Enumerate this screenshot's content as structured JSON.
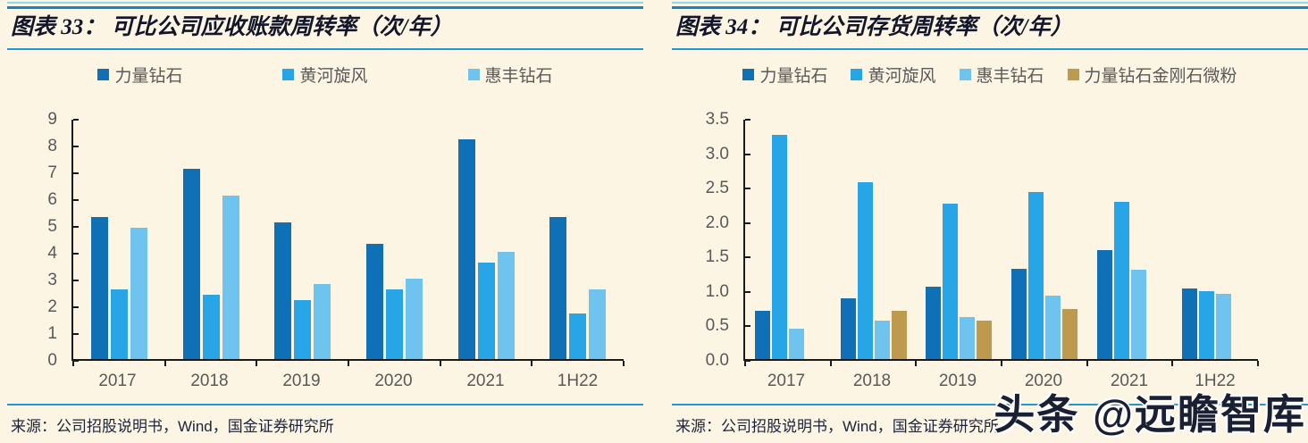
{
  "page": {
    "background": "#FCF5E4",
    "accent_colors": {
      "rule_light": "#8ED9F2",
      "rule_strong": "#1583C5",
      "rule_mid": "#2196D3"
    },
    "watermark_text": "头条 @远瞻智库"
  },
  "chart_data": [
    {
      "type": "bar",
      "title": "图表 33：  可比公司应收账款周转率（次/年）",
      "source": "来源：公司招股说明书，Wind，国金证券研究所",
      "categories": [
        "2017",
        "2018",
        "2019",
        "2020",
        "2021",
        "1H22"
      ],
      "series": [
        {
          "name": "力量钻石",
          "color": "#0F70B6",
          "values": [
            5.3,
            7.1,
            5.1,
            4.3,
            8.2,
            5.3
          ]
        },
        {
          "name": "黄河旋风",
          "color": "#27A5E7",
          "values": [
            2.6,
            2.4,
            2.2,
            2.6,
            3.6,
            1.7
          ]
        },
        {
          "name": "惠丰钻石",
          "color": "#6EC3EF",
          "values": [
            4.9,
            6.1,
            2.8,
            3.0,
            4.0,
            2.6
          ]
        }
      ],
      "ylim": [
        0,
        9
      ],
      "yticks": [
        0,
        1,
        2,
        3,
        4,
        5,
        6,
        7,
        8,
        9
      ],
      "ytick_labels": [
        "0",
        "1",
        "2",
        "3",
        "4",
        "5",
        "6",
        "7",
        "8",
        "9"
      ],
      "grid": false,
      "legend_position": "top"
    },
    {
      "type": "bar",
      "title": "图表 34：  可比公司存货周转率（次/年）",
      "source": "来源：公司招股说明书，Wind，国金证券研究所",
      "categories": [
        "2017",
        "2018",
        "2019",
        "2020",
        "2021",
        "1H22"
      ],
      "series": [
        {
          "name": "力量钻石",
          "color": "#0F70B6",
          "values": [
            0.7,
            0.88,
            1.05,
            1.31,
            1.58,
            1.02
          ]
        },
        {
          "name": "黄河旋风",
          "color": "#27A5E7",
          "values": [
            3.25,
            2.57,
            2.26,
            2.42,
            2.28,
            0.98
          ]
        },
        {
          "name": "惠丰钻石",
          "color": "#6EC3EF",
          "values": [
            0.44,
            0.56,
            0.61,
            0.92,
            1.3,
            0.95
          ]
        },
        {
          "name": "力量钻石金刚石微粉",
          "color": "#BD9A4E",
          "values": [
            null,
            0.7,
            0.56,
            0.72,
            null,
            null
          ]
        }
      ],
      "ylim": [
        0,
        3.5
      ],
      "yticks": [
        0,
        0.5,
        1,
        1.5,
        2,
        2.5,
        3,
        3.5
      ],
      "ytick_labels": [
        "0.0",
        "0.5",
        "1.0",
        "1.5",
        "2.0",
        "2.5",
        "3.0",
        "3.5"
      ],
      "grid": false,
      "legend_position": "top"
    }
  ]
}
